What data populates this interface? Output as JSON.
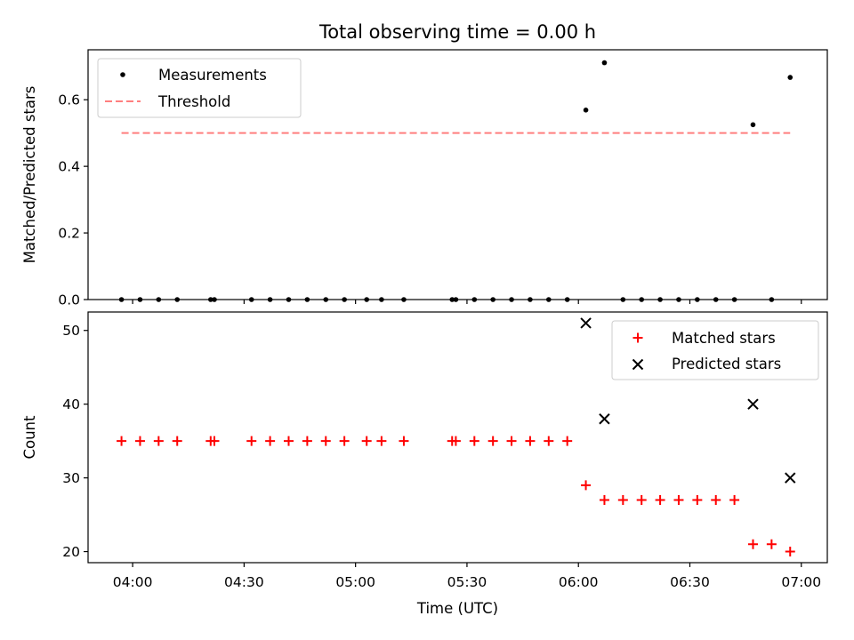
{
  "chart_data": [
    {
      "type": "scatter",
      "title": "Total observing time = 0.00 h",
      "ylabel": "Matched/Predicted stars",
      "xlabel": "",
      "ylim": [
        0,
        0.75
      ],
      "yticks": [
        0.0,
        0.2,
        0.4,
        0.6
      ],
      "ytick_labels": [
        "0.0",
        "0.2",
        "0.4",
        "0.6"
      ],
      "legend_position": "upper left",
      "series": [
        {
          "name": "Measurements",
          "marker": "dot",
          "color": "#000000",
          "x": [
            "03:57",
            "04:02",
            "04:07",
            "04:12",
            "04:21",
            "04:22",
            "04:32",
            "04:37",
            "04:42",
            "04:47",
            "04:52",
            "04:57",
            "05:03",
            "05:07",
            "05:13",
            "05:26",
            "05:27",
            "05:32",
            "05:37",
            "05:42",
            "05:47",
            "05:52",
            "05:57",
            "06:02",
            "06:07",
            "06:12",
            "06:17",
            "06:22",
            "06:27",
            "06:32",
            "06:37",
            "06:42",
            "06:47",
            "06:52",
            "06:57"
          ],
          "y": [
            0,
            0,
            0,
            0,
            0,
            0,
            0,
            0,
            0,
            0,
            0,
            0,
            0,
            0,
            0,
            0,
            0,
            0,
            0,
            0,
            0,
            0,
            0,
            0.569,
            0.711,
            0,
            0,
            0,
            0,
            0,
            0,
            0,
            0.525,
            0,
            0.667
          ]
        },
        {
          "name": "Threshold",
          "style": "dashed",
          "color": "#ff7f7f",
          "x": [
            "03:57",
            "06:57"
          ],
          "y": [
            0.5,
            0.5
          ]
        }
      ]
    },
    {
      "type": "scatter",
      "title": "",
      "xlabel": "Time (UTC)",
      "ylabel": "Count",
      "ylim": [
        18.5,
        52.5
      ],
      "yticks": [
        20,
        30,
        40,
        50
      ],
      "ytick_labels": [
        "20",
        "30",
        "40",
        "50"
      ],
      "xlim": [
        "03:48",
        "07:07"
      ],
      "xticks": [
        "04:00",
        "04:30",
        "05:00",
        "05:30",
        "06:00",
        "06:30",
        "07:00"
      ],
      "legend_position": "upper right",
      "series": [
        {
          "name": "Matched stars",
          "marker": "plus",
          "color": "#ff0000",
          "x": [
            "03:57",
            "04:02",
            "04:07",
            "04:12",
            "04:21",
            "04:22",
            "04:32",
            "04:37",
            "04:42",
            "04:47",
            "04:52",
            "04:57",
            "05:03",
            "05:07",
            "05:13",
            "05:26",
            "05:27",
            "05:32",
            "05:37",
            "05:42",
            "05:47",
            "05:52",
            "05:57",
            "06:02",
            "06:07",
            "06:12",
            "06:17",
            "06:22",
            "06:27",
            "06:32",
            "06:37",
            "06:42",
            "06:47",
            "06:52",
            "06:57"
          ],
          "y": [
            35,
            35,
            35,
            35,
            35,
            35,
            35,
            35,
            35,
            35,
            35,
            35,
            35,
            35,
            35,
            35,
            35,
            35,
            35,
            35,
            35,
            35,
            35,
            29,
            27,
            27,
            27,
            27,
            27,
            27,
            27,
            27,
            21,
            21,
            20
          ]
        },
        {
          "name": "Predicted stars",
          "marker": "x",
          "color": "#000000",
          "x": [
            "06:02",
            "06:07",
            "06:47",
            "06:57"
          ],
          "y": [
            51,
            38,
            40,
            30
          ]
        }
      ]
    }
  ]
}
